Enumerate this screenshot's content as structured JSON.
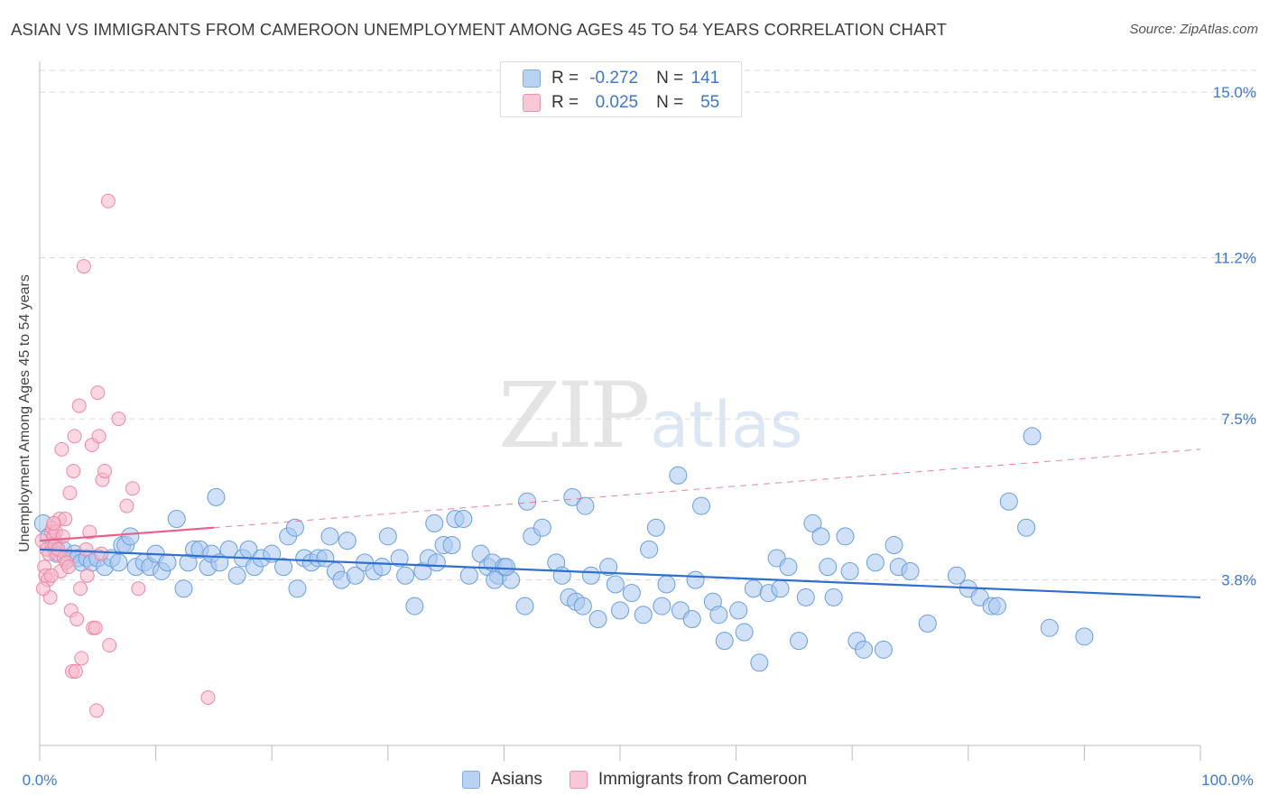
{
  "title": "ASIAN VS IMMIGRANTS FROM CAMEROON UNEMPLOYMENT AMONG AGES 45 TO 54 YEARS CORRELATION CHART",
  "source": "Source: ZipAtlas.com",
  "watermark": {
    "zip": "ZIP",
    "atlas": "atlas"
  },
  "legend": {
    "r_label": "R =",
    "n_label": "N =",
    "asians": {
      "r": "-0.272",
      "n": "141"
    },
    "cameroon": {
      "r": "0.025",
      "n": "55"
    }
  },
  "colors": {
    "asians_fill": "#aac8f0",
    "asians_stroke": "#6a9fdc",
    "asians_line": "#2f6fd0",
    "cameroon_fill": "#f7b6c9",
    "cameroon_stroke": "#ec88a7",
    "cameroon_line": "#e8608a",
    "axis_text": "#3d78cc",
    "grid": "#d9d9d9"
  },
  "chart_data": {
    "type": "scatter",
    "title": "ASIAN VS IMMIGRANTS FROM CAMEROON UNEMPLOYMENT AMONG AGES 45 TO 54 YEARS CORRELATION CHART",
    "xlabel": "",
    "ylabel": "Unemployment Among Ages 45 to 54 years",
    "xlim": [
      0,
      100
    ],
    "ylim": [
      0,
      15.5
    ],
    "x_tick_labels": [
      "0.0%",
      "100.0%"
    ],
    "y_ticks": [
      3.8,
      7.5,
      11.2,
      15.0
    ],
    "y_tick_labels": [
      "3.8%",
      "7.5%",
      "11.2%",
      "15.0%"
    ],
    "series": [
      {
        "name": "Asians",
        "r": -0.272,
        "n": 141,
        "trend": {
          "x0": 0,
          "y0": 4.5,
          "x1": 100,
          "y1": 3.4
        },
        "points": [
          [
            0.3,
            5.1
          ],
          [
            0.8,
            4.8
          ],
          [
            1.2,
            4.6
          ],
          [
            1.5,
            4.4
          ],
          [
            2.0,
            4.5
          ],
          [
            2.5,
            4.3
          ],
          [
            3.0,
            4.4
          ],
          [
            3.3,
            4.3
          ],
          [
            3.6,
            4.2
          ],
          [
            4.1,
            4.3
          ],
          [
            4.5,
            4.2
          ],
          [
            5.0,
            4.3
          ],
          [
            5.6,
            4.1
          ],
          [
            6.2,
            4.3
          ],
          [
            6.8,
            4.2
          ],
          [
            7.1,
            4.6
          ],
          [
            7.4,
            4.6
          ],
          [
            7.8,
            4.8
          ],
          [
            8.3,
            4.1
          ],
          [
            9.0,
            4.2
          ],
          [
            9.5,
            4.1
          ],
          [
            10.0,
            4.4
          ],
          [
            10.5,
            4.0
          ],
          [
            11.0,
            4.2
          ],
          [
            11.8,
            5.2
          ],
          [
            12.4,
            3.6
          ],
          [
            12.8,
            4.2
          ],
          [
            13.3,
            4.5
          ],
          [
            13.8,
            4.5
          ],
          [
            14.5,
            4.1
          ],
          [
            14.8,
            4.4
          ],
          [
            15.2,
            5.7
          ],
          [
            15.5,
            4.2
          ],
          [
            16.3,
            4.5
          ],
          [
            17.0,
            3.9
          ],
          [
            17.5,
            4.3
          ],
          [
            18.0,
            4.5
          ],
          [
            18.5,
            4.1
          ],
          [
            19.1,
            4.3
          ],
          [
            20.0,
            4.4
          ],
          [
            21.0,
            4.1
          ],
          [
            21.4,
            4.8
          ],
          [
            22.0,
            5.0
          ],
          [
            22.2,
            3.6
          ],
          [
            22.8,
            4.3
          ],
          [
            23.4,
            4.2
          ],
          [
            24.0,
            4.3
          ],
          [
            24.6,
            4.3
          ],
          [
            25.0,
            4.8
          ],
          [
            25.5,
            4.0
          ],
          [
            26.0,
            3.8
          ],
          [
            26.5,
            4.7
          ],
          [
            27.2,
            3.9
          ],
          [
            28.0,
            4.2
          ],
          [
            28.8,
            4.0
          ],
          [
            29.5,
            4.1
          ],
          [
            30.0,
            4.8
          ],
          [
            31.0,
            4.3
          ],
          [
            31.5,
            3.9
          ],
          [
            32.3,
            3.2
          ],
          [
            33.0,
            4.0
          ],
          [
            33.5,
            4.3
          ],
          [
            34.0,
            5.1
          ],
          [
            34.2,
            4.2
          ],
          [
            34.8,
            4.6
          ],
          [
            35.5,
            4.6
          ],
          [
            35.8,
            5.2
          ],
          [
            36.5,
            5.2
          ],
          [
            37.0,
            3.9
          ],
          [
            38.0,
            4.4
          ],
          [
            38.6,
            4.1
          ],
          [
            39.0,
            4.2
          ],
          [
            39.5,
            3.9
          ],
          [
            40.0,
            4.1
          ],
          [
            39.2,
            3.8
          ],
          [
            40.6,
            3.8
          ],
          [
            41.8,
            3.2
          ],
          [
            40.2,
            4.1
          ],
          [
            42.0,
            5.6
          ],
          [
            42.4,
            4.8
          ],
          [
            43.3,
            5.0
          ],
          [
            44.5,
            4.2
          ],
          [
            45.0,
            3.9
          ],
          [
            45.6,
            3.4
          ],
          [
            46.2,
            3.3
          ],
          [
            46.8,
            3.2
          ],
          [
            45.9,
            5.7
          ],
          [
            47.0,
            5.5
          ],
          [
            47.5,
            3.9
          ],
          [
            48.1,
            2.9
          ],
          [
            49.0,
            4.1
          ],
          [
            49.6,
            3.7
          ],
          [
            50.0,
            3.1
          ],
          [
            51.0,
            3.5
          ],
          [
            52.0,
            3.0
          ],
          [
            52.5,
            4.5
          ],
          [
            53.1,
            5.0
          ],
          [
            54.0,
            3.7
          ],
          [
            53.6,
            3.2
          ],
          [
            55.0,
            6.2
          ],
          [
            55.2,
            3.1
          ],
          [
            56.2,
            2.9
          ],
          [
            56.5,
            3.8
          ],
          [
            57.0,
            5.5
          ],
          [
            58.0,
            3.3
          ],
          [
            58.5,
            3.0
          ],
          [
            59.0,
            2.4
          ],
          [
            60.2,
            3.1
          ],
          [
            60.7,
            2.6
          ],
          [
            61.5,
            3.6
          ],
          [
            62.0,
            1.9
          ],
          [
            62.8,
            3.5
          ],
          [
            63.5,
            4.3
          ],
          [
            63.8,
            3.6
          ],
          [
            64.5,
            4.1
          ],
          [
            65.4,
            2.4
          ],
          [
            66.0,
            3.4
          ],
          [
            66.6,
            5.1
          ],
          [
            67.3,
            4.8
          ],
          [
            67.9,
            4.1
          ],
          [
            68.4,
            3.4
          ],
          [
            69.4,
            4.8
          ],
          [
            69.8,
            4.0
          ],
          [
            70.4,
            2.4
          ],
          [
            71.0,
            2.2
          ],
          [
            72.0,
            4.2
          ],
          [
            72.7,
            2.2
          ],
          [
            73.6,
            4.6
          ],
          [
            74.0,
            4.1
          ],
          [
            75.0,
            4.0
          ],
          [
            76.5,
            2.8
          ],
          [
            79.0,
            3.9
          ],
          [
            80.0,
            3.6
          ],
          [
            81.0,
            3.4
          ],
          [
            82.0,
            3.2
          ],
          [
            82.5,
            3.2
          ],
          [
            83.5,
            5.6
          ],
          [
            85.0,
            5.0
          ],
          [
            87.0,
            2.7
          ],
          [
            90.0,
            2.5
          ],
          [
            85.5,
            7.1
          ]
        ]
      },
      {
        "name": "Immigrants from Cameroon",
        "r": 0.025,
        "n": 55,
        "trend": {
          "x0": 0,
          "y0": 4.7,
          "x1": 15,
          "y1": 5.0,
          "dash_x1": 100,
          "dash_y1": 6.8
        },
        "points": [
          [
            0.2,
            4.7
          ],
          [
            0.4,
            4.1
          ],
          [
            0.5,
            3.9
          ],
          [
            0.6,
            4.5
          ],
          [
            0.8,
            4.4
          ],
          [
            1.0,
            4.9
          ],
          [
            1.1,
            5.0
          ],
          [
            1.2,
            4.8
          ],
          [
            1.3,
            4.6
          ],
          [
            1.4,
            4.9
          ],
          [
            1.5,
            4.4
          ],
          [
            1.6,
            4.5
          ],
          [
            1.7,
            5.2
          ],
          [
            1.8,
            4.0
          ],
          [
            2.0,
            4.8
          ],
          [
            2.1,
            4.3
          ],
          [
            2.2,
            5.2
          ],
          [
            0.7,
            3.8
          ],
          [
            0.9,
            3.4
          ],
          [
            1.0,
            3.9
          ],
          [
            2.3,
            4.2
          ],
          [
            2.5,
            4.1
          ],
          [
            2.6,
            5.8
          ],
          [
            2.7,
            3.1
          ],
          [
            2.8,
            1.7
          ],
          [
            2.9,
            6.3
          ],
          [
            3.0,
            7.1
          ],
          [
            3.1,
            1.7
          ],
          [
            3.2,
            2.9
          ],
          [
            3.4,
            7.8
          ],
          [
            3.5,
            3.6
          ],
          [
            3.6,
            2.0
          ],
          [
            3.8,
            11.0
          ],
          [
            4.0,
            4.5
          ],
          [
            4.1,
            3.9
          ],
          [
            4.3,
            4.9
          ],
          [
            4.5,
            6.9
          ],
          [
            4.6,
            2.7
          ],
          [
            4.8,
            2.7
          ],
          [
            4.9,
            0.8
          ],
          [
            5.0,
            8.1
          ],
          [
            5.1,
            7.1
          ],
          [
            5.3,
            4.4
          ],
          [
            5.4,
            6.1
          ],
          [
            5.6,
            6.3
          ],
          [
            6.0,
            2.3
          ],
          [
            6.8,
            7.5
          ],
          [
            7.5,
            5.5
          ],
          [
            8.0,
            5.9
          ],
          [
            8.5,
            3.6
          ],
          [
            5.9,
            12.5
          ],
          [
            14.5,
            1.1
          ],
          [
            0.3,
            3.6
          ],
          [
            1.9,
            6.8
          ],
          [
            1.2,
            5.1
          ]
        ]
      }
    ]
  }
}
